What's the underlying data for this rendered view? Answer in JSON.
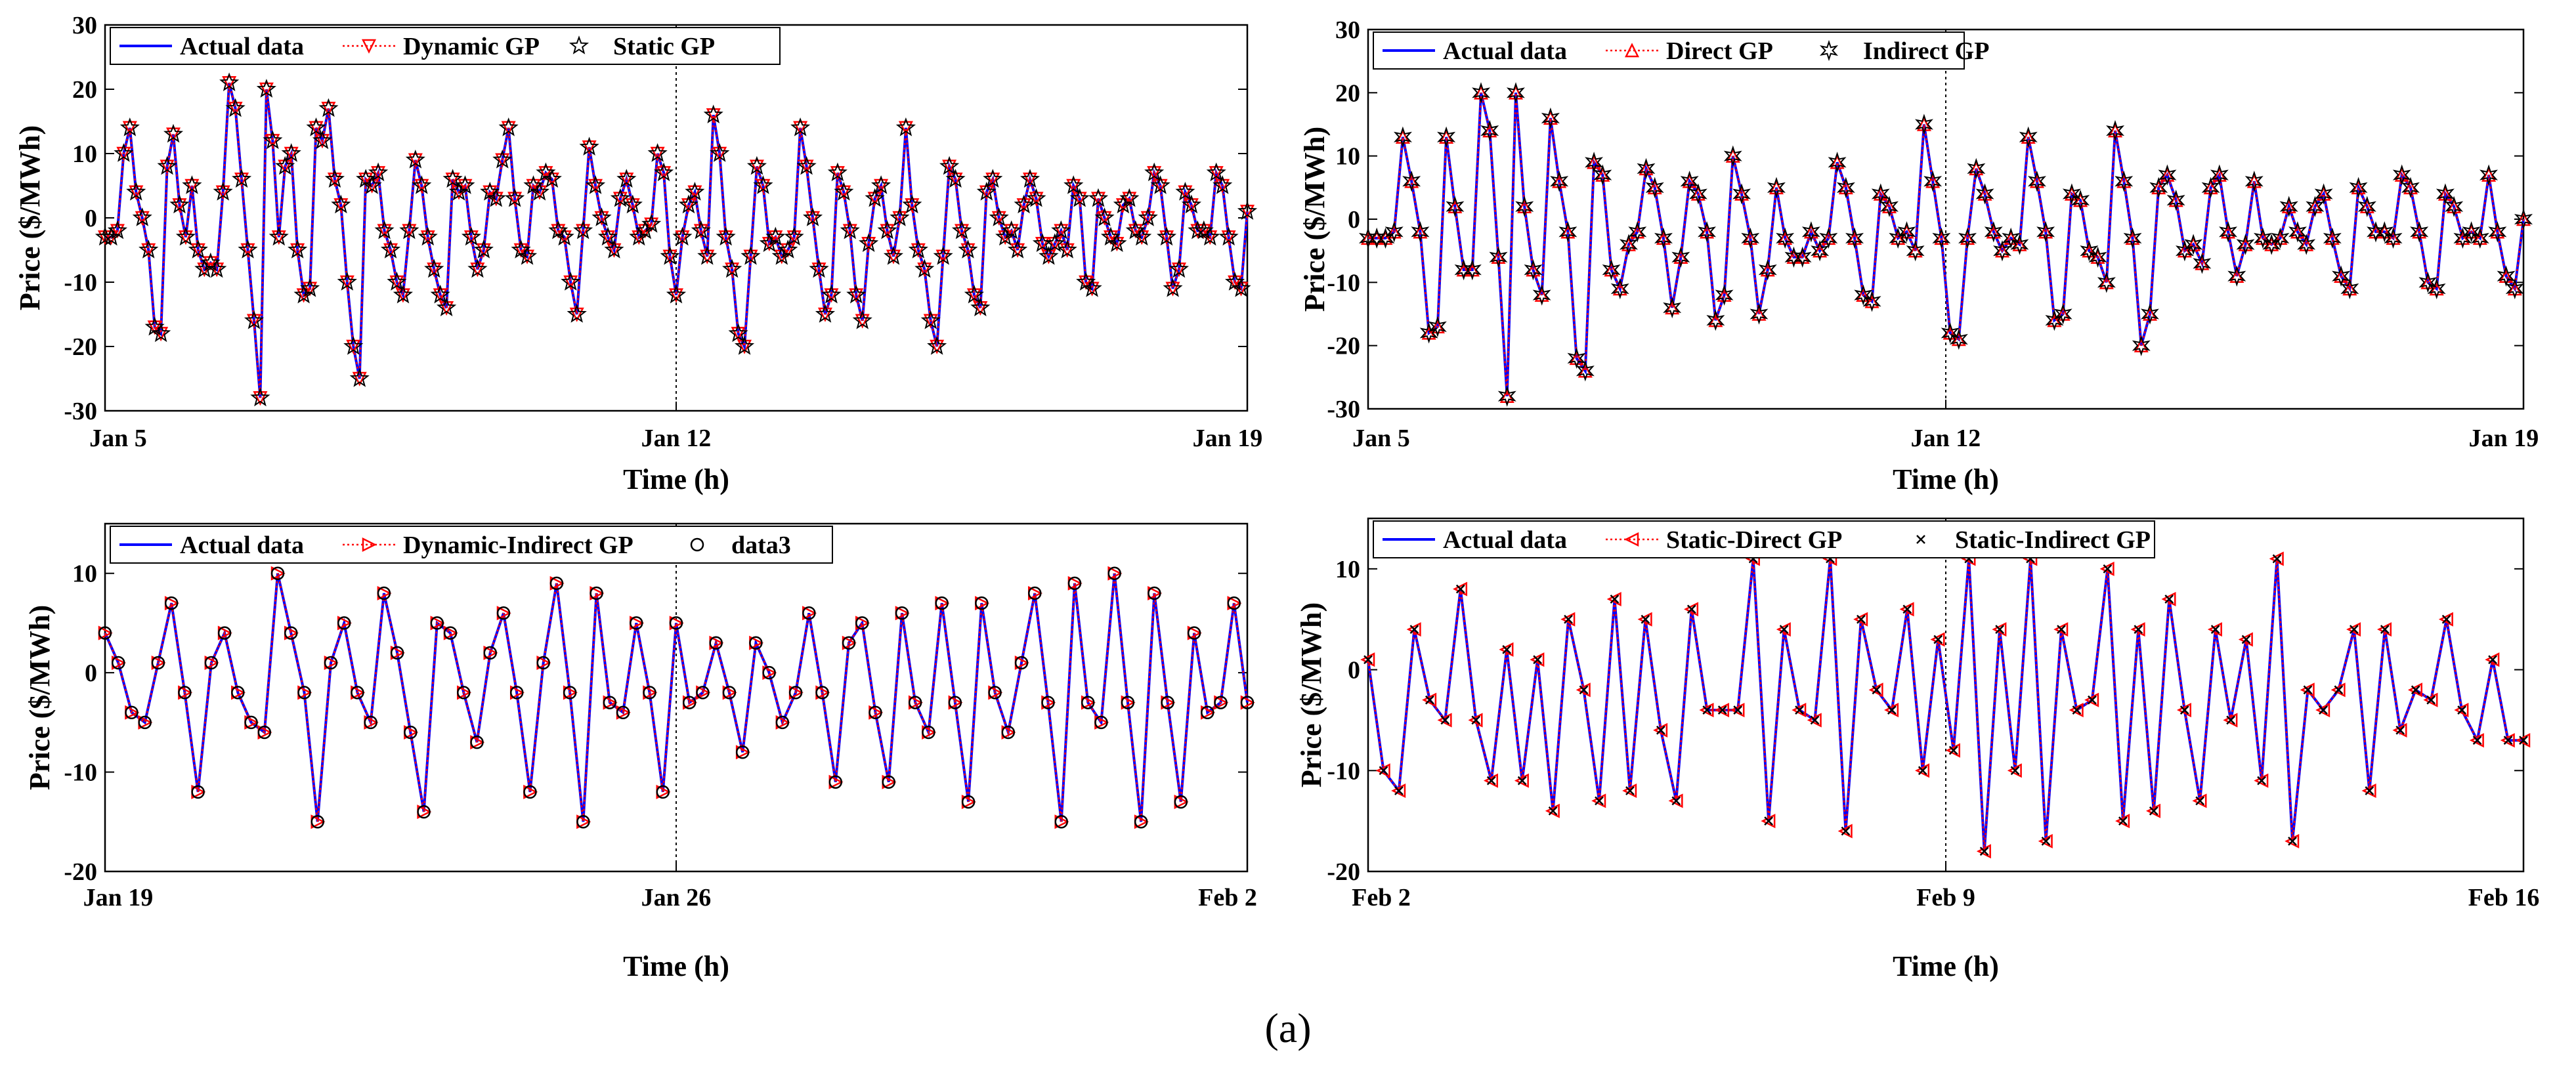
{
  "caption": "(a)",
  "chart_data": [
    {
      "type": "line",
      "xlabel": "Time (h)",
      "ylabel": "Price ($/MWh)",
      "ylim": [
        -30,
        30
      ],
      "yticks": [
        -30,
        -20,
        -10,
        0,
        10,
        20,
        30
      ],
      "xtick_labels": [
        "Jan 5",
        "Jan 12",
        "Jan 19"
      ],
      "divider_at_hours": 168,
      "legend_position": "top-left",
      "series": [
        {
          "name": "Actual data",
          "style": "line",
          "color": "#0000ff"
        },
        {
          "name": "Dynamic GP",
          "style": "dotted-triangle-down",
          "color": "#ff0000"
        },
        {
          "name": "Static GP",
          "style": "star",
          "color": "#000000"
        }
      ],
      "values": [
        -3,
        -3,
        -2,
        10,
        14,
        4,
        0,
        -5,
        -17,
        -18,
        8,
        13,
        2,
        -3,
        5,
        -5,
        -8,
        -7,
        -8,
        4,
        21,
        17,
        6,
        -5,
        -16,
        -28,
        20,
        12,
        -3,
        8,
        10,
        -5,
        -12,
        -11,
        14,
        12,
        17,
        6,
        2,
        -10,
        -20,
        -25,
        6,
        5,
        7,
        -2,
        -5,
        -10,
        -12,
        -2,
        9,
        5,
        -3,
        -8,
        -12,
        -14,
        6,
        4,
        5,
        -3,
        -8,
        -5,
        4,
        3,
        9,
        14,
        3,
        -5,
        -6,
        5,
        4,
        7,
        6,
        -2,
        -3,
        -10,
        -15,
        -2,
        11,
        5,
        0,
        -3,
        -5,
        3,
        6,
        2,
        -3,
        -2,
        -1,
        10,
        7,
        -6,
        -12,
        -3,
        2,
        4,
        -2,
        -6,
        16,
        10,
        -3,
        -8,
        -18,
        -20,
        -6,
        8,
        5,
        -4,
        -3,
        -6,
        -5,
        -3,
        14,
        8,
        0,
        -8,
        -15,
        -12,
        7,
        4,
        -2,
        -12,
        -16,
        -4,
        3,
        5,
        -2,
        -6,
        0,
        14,
        2,
        -5,
        -8,
        -16,
        -20,
        -6,
        8,
        6,
        -2,
        -5,
        -12,
        -14,
        4,
        6,
        0,
        -3,
        -2,
        -5,
        2,
        6,
        3,
        -4,
        -6,
        -4,
        -2,
        -5,
        5,
        3,
        -10,
        -11,
        3,
        0,
        -3,
        -4,
        2,
        3,
        -2,
        -3,
        0,
        7,
        5,
        -3,
        -11,
        -8,
        4,
        2,
        -2,
        -2,
        -3,
        7,
        5,
        -3,
        -10,
        -11,
        1
      ],
      "_note": "values are hourly-ish samples over the 2-week window (Jan 5 - Jan 19)"
    },
    {
      "type": "line",
      "xlabel": "Time (h)",
      "ylabel": "Price ($/MWh)",
      "ylim": [
        -30,
        30
      ],
      "yticks": [
        -30,
        -20,
        -10,
        0,
        10,
        20,
        30
      ],
      "xtick_labels": [
        "Jan 5",
        "Jan 12",
        "Jan 19"
      ],
      "divider_at_hours": 168,
      "legend_position": "top-left",
      "series": [
        {
          "name": "Actual data",
          "style": "line",
          "color": "#0000ff"
        },
        {
          "name": "Direct GP",
          "style": "dotted-triangle-up",
          "color": "#ff0000"
        },
        {
          "name": "Indirect GP",
          "style": "hexagram",
          "color": "#000000"
        }
      ],
      "values": [
        -3,
        -3,
        -3,
        -2,
        13,
        6,
        -2,
        -18,
        -17,
        13,
        2,
        -8,
        -8,
        20,
        14,
        -6,
        -28,
        20,
        2,
        -8,
        -12,
        16,
        6,
        -2,
        -22,
        -24,
        9,
        7,
        -8,
        -11,
        -4,
        -2,
        8,
        5,
        -3,
        -14,
        -6,
        6,
        4,
        -2,
        -16,
        -12,
        10,
        4,
        -3,
        -15,
        -8,
        5,
        -3,
        -6,
        -6,
        -2,
        -5,
        -3,
        9,
        5,
        -3,
        -12,
        -13,
        4,
        2,
        -3,
        -2,
        -5,
        15,
        6,
        -3,
        -18,
        -19,
        -3,
        8,
        4,
        -2,
        -5,
        -3,
        -4,
        13,
        6,
        -2,
        -16,
        -15,
        4,
        3,
        -5,
        -6,
        -10,
        14,
        6,
        -3,
        -20,
        -15,
        5,
        7,
        3,
        -5,
        -4,
        -7,
        5,
        7,
        -2,
        -9,
        -4,
        6,
        -3,
        -4,
        -3,
        2,
        -2,
        -4,
        2,
        4,
        -3,
        -9,
        -11,
        5,
        2,
        -2,
        -2,
        -3,
        7,
        5,
        -2,
        -10,
        -11,
        4,
        2,
        -3,
        -2,
        -3,
        7,
        -2,
        -9,
        -11,
        0
      ],
      "_note": "values over Jan 5 - Jan 19"
    },
    {
      "type": "line",
      "xlabel": "Time (h)",
      "ylabel": "Price ($/MWh)",
      "ylim": [
        -20,
        15
      ],
      "yticks": [
        -20,
        -10,
        0,
        10
      ],
      "xtick_labels": [
        "Jan 19",
        "Jan 26",
        "Feb 2"
      ],
      "divider_at_hours": 168,
      "legend_position": "top-left",
      "series": [
        {
          "name": "Actual data",
          "style": "line",
          "color": "#0000ff"
        },
        {
          "name": "Dynamic-Indirect GP",
          "style": "dotted-triangle-right",
          "color": "#ff0000"
        },
        {
          "name": "data3",
          "style": "circle",
          "color": "#000000"
        }
      ],
      "values": [
        4,
        1,
        -4,
        -5,
        1,
        7,
        -2,
        -12,
        1,
        4,
        -2,
        -5,
        -6,
        10,
        4,
        -2,
        -15,
        1,
        5,
        -2,
        -5,
        8,
        2,
        -6,
        -14,
        5,
        4,
        -2,
        -7,
        2,
        6,
        -2,
        -12,
        1,
        9,
        -2,
        -15,
        8,
        -3,
        -4,
        5,
        -2,
        -12,
        5,
        -3,
        -2,
        3,
        -2,
        -8,
        3,
        0,
        -5,
        -2,
        6,
        -2,
        -11,
        3,
        5,
        -4,
        -11,
        6,
        -3,
        -6,
        7,
        -3,
        -13,
        7,
        -2,
        -6,
        1,
        8,
        -3,
        -15,
        9,
        -3,
        -5,
        10,
        -3,
        -15,
        8,
        -3,
        -13,
        4,
        -4,
        -3,
        7,
        -3
      ],
      "_note": "values over Jan 19 - Feb 2"
    },
    {
      "type": "line",
      "xlabel": "Time (h)",
      "ylabel": "Price ($/MWh)",
      "ylim": [
        -20,
        15
      ],
      "yticks": [
        -20,
        -10,
        0,
        10
      ],
      "xtick_labels": [
        "Feb 2",
        "Feb 9",
        "Feb 16"
      ],
      "divider_at_hours": 168,
      "legend_position": "top-left",
      "series": [
        {
          "name": "Actual data",
          "style": "line",
          "color": "#0000ff"
        },
        {
          "name": "Static-Direct GP",
          "style": "dotted-triangle-left",
          "color": "#ff0000"
        },
        {
          "name": "Static-Indirect GP",
          "style": "cross",
          "color": "#000000"
        }
      ],
      "values": [
        1,
        -10,
        -12,
        4,
        -3,
        -5,
        8,
        -5,
        -11,
        2,
        -11,
        1,
        -14,
        5,
        -2,
        -13,
        7,
        -12,
        5,
        -6,
        -13,
        6,
        -4,
        -4,
        -4,
        11,
        -15,
        4,
        -4,
        -5,
        11,
        -16,
        5,
        -2,
        -4,
        6,
        -10,
        3,
        -8,
        11,
        -18,
        4,
        -10,
        11,
        -17,
        4,
        -4,
        -3,
        10,
        -15,
        4,
        -14,
        7,
        -4,
        -13,
        4,
        -5,
        3,
        -11,
        11,
        -17,
        -2,
        -4,
        -2,
        4,
        -12,
        4,
        -6,
        -2,
        -3,
        5,
        -4,
        -7,
        1,
        -7,
        -7
      ],
      "_note": "values over Feb 2 - Feb 16"
    }
  ]
}
